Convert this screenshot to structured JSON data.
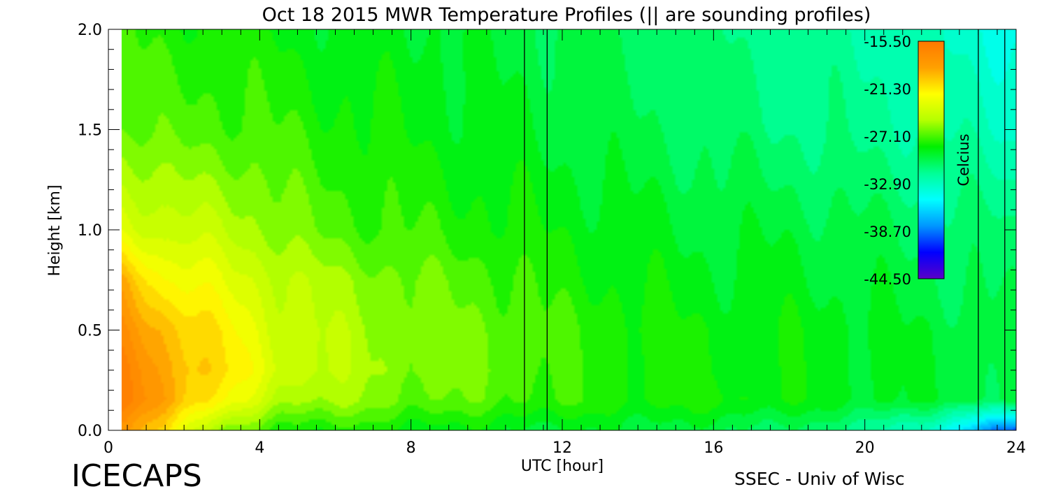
{
  "chart_data": {
    "type": "heatmap",
    "title": "Oct 18 2015 MWR Temperature Profiles (|| are sounding profiles)",
    "xlabel": "UTC [hour]",
    "ylabel": "Height [km]",
    "xlim": [
      0,
      24
    ],
    "ylim": [
      0,
      2
    ],
    "x_ticks": [
      "0",
      "4",
      "8",
      "12",
      "16",
      "20",
      "24"
    ],
    "x_tick_values": [
      0,
      4,
      8,
      12,
      16,
      20,
      24
    ],
    "y_ticks": [
      "0.0",
      "0.5",
      "1.0",
      "1.5",
      "2.0"
    ],
    "y_tick_values": [
      0,
      0.5,
      1.0,
      1.5,
      2.0
    ],
    "colorbar": {
      "label": "Celcius",
      "tick_labels": [
        "-15.50",
        "-21.30",
        "-27.10",
        "-32.90",
        "-38.70",
        "-44.50"
      ],
      "tick_values": [
        -15.5,
        -21.3,
        -27.1,
        -32.9,
        -38.7,
        -44.5
      ],
      "range": [
        -44.5,
        -15.5
      ],
      "colors": [
        "#5a00c8",
        "#0000ff",
        "#0096ff",
        "#00ffff",
        "#00ff96",
        "#00f000",
        "#b4ff00",
        "#ffff00",
        "#ffa000",
        "#ff7800"
      ]
    },
    "sounding_times": [
      11.0,
      11.6,
      23.0,
      23.7
    ],
    "data_x_start": 0.35,
    "temperature_field": {
      "x": [
        0.35,
        1.5,
        3.0,
        4.5,
        6.0,
        8.0,
        10.0,
        12.0,
        14.0,
        16.0,
        18.0,
        20.0,
        22.0,
        24.0
      ],
      "y": [
        0.0,
        0.15,
        0.3,
        0.5,
        0.75,
        1.0,
        1.5,
        2.0
      ],
      "values_celsius": [
        [
          -18.5,
          -21.0,
          -26.0,
          -28.0,
          -28.0,
          -28.5,
          -29.0,
          -29.5,
          -29.5,
          -30.0,
          -30.5,
          -31.5,
          -34.0,
          -40.0
        ],
        [
          -16.3,
          -18.5,
          -22.0,
          -25.0,
          -25.5,
          -26.5,
          -27.0,
          -27.5,
          -28.0,
          -28.0,
          -28.5,
          -29.0,
          -29.5,
          -30.0
        ],
        [
          -16.5,
          -18.8,
          -21.0,
          -23.5,
          -25.0,
          -26.0,
          -26.5,
          -27.5,
          -28.0,
          -28.5,
          -28.5,
          -29.0,
          -29.5,
          -30.0
        ],
        [
          -17.5,
          -19.5,
          -21.5,
          -24.0,
          -25.0,
          -26.0,
          -26.5,
          -27.5,
          -28.0,
          -28.5,
          -28.5,
          -29.0,
          -29.5,
          -30.0
        ],
        [
          -19.0,
          -22.0,
          -23.0,
          -24.5,
          -25.5,
          -26.5,
          -27.0,
          -28.0,
          -28.5,
          -29.0,
          -29.0,
          -29.5,
          -30.0,
          -30.5
        ],
        [
          -23.0,
          -24.5,
          -24.5,
          -26.0,
          -27.0,
          -27.5,
          -28.0,
          -28.5,
          -29.0,
          -29.5,
          -29.5,
          -30.0,
          -30.5,
          -31.0
        ],
        [
          -26.5,
          -27.0,
          -27.0,
          -27.5,
          -28.0,
          -28.5,
          -29.0,
          -29.5,
          -30.0,
          -30.5,
          -31.0,
          -31.5,
          -32.0,
          -33.0
        ],
        [
          -27.5,
          -28.0,
          -28.0,
          -28.5,
          -29.0,
          -29.0,
          -29.5,
          -30.0,
          -30.5,
          -31.0,
          -31.5,
          -32.0,
          -33.0,
          -34.0
        ]
      ]
    }
  },
  "footer": {
    "left": "ICECAPS",
    "right": "SSEC - Univ of Wisc"
  }
}
